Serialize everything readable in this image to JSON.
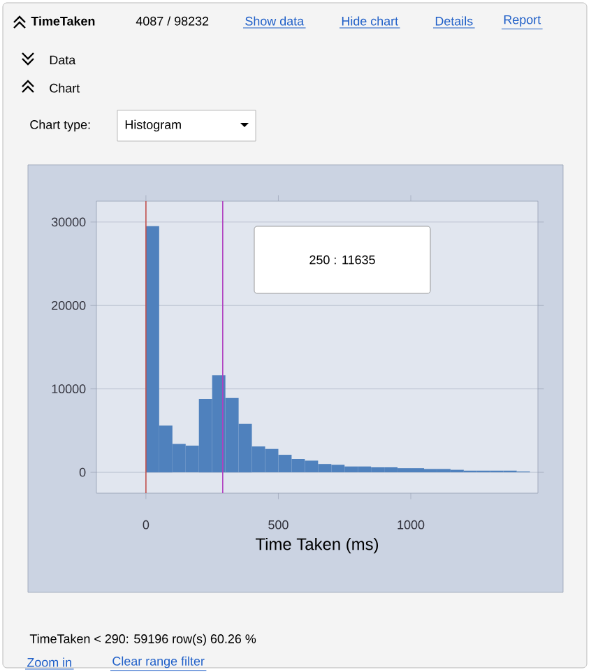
{
  "chart_data": {
    "type": "histogram",
    "title": "TimeTaken",
    "subtitle": "4087 / 98232",
    "xlabel": "Time Taken  (ms)",
    "bins": [
      0,
      50,
      100,
      150,
      200,
      250,
      300,
      350,
      400,
      450,
      500,
      550,
      600,
      650,
      700,
      750,
      800,
      850,
      900,
      950,
      1000,
      1050,
      1100,
      1150,
      1200,
      1250,
      1300,
      1350,
      1400,
      1450
    ],
    "values": [
      29500,
      5600,
      3400,
      3200,
      8800,
      11635,
      8900,
      5800,
      3100,
      2800,
      2100,
      1600,
      1400,
      1000,
      900,
      700,
      700,
      600,
      600,
      500,
      500,
      400,
      400,
      300,
      200,
      200,
      200,
      200,
      100
    ],
    "color": "#4f81bd",
    "xlim": [
      -187,
      1480
    ],
    "ylim": [
      -2500,
      32500
    ],
    "xticks": [
      0,
      500,
      1000
    ],
    "yticks": [
      0,
      10000,
      20000,
      30000
    ],
    "grid": "y",
    "ref_lines": [
      {
        "axis": "x",
        "value": 0,
        "color": "#c0504d"
      },
      {
        "axis": "x",
        "value": 290,
        "color": "#b040c0"
      }
    ],
    "annotations": [
      "Show data",
      "Hide chart",
      "Details",
      "Report",
      "Data",
      "Chart",
      "Chart type:",
      "Histogram",
      "TimeTaken < 290: 59196 row(s) 60.26 %",
      "Zoom in",
      "Clear range filter",
      "250 : 11635"
    ]
  }
}
